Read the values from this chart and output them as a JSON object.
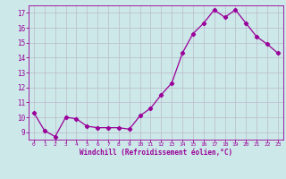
{
  "x": [
    0,
    1,
    2,
    3,
    4,
    5,
    6,
    7,
    8,
    9,
    10,
    11,
    12,
    13,
    14,
    15,
    16,
    17,
    18,
    19,
    20,
    21,
    22,
    23
  ],
  "y": [
    10.3,
    9.1,
    8.7,
    10.0,
    9.9,
    9.4,
    9.3,
    9.3,
    9.3,
    9.2,
    10.1,
    10.6,
    11.5,
    12.3,
    14.3,
    15.6,
    16.3,
    17.2,
    16.7,
    17.2,
    16.3,
    15.4,
    14.9,
    14.3
  ],
  "line_color": "#990099",
  "marker": "D",
  "marker_size": 2.2,
  "bg_color": "#cce8e8",
  "grid_color": "#bbbbcc",
  "xlabel": "Windchill (Refroidissement éolien,°C)",
  "tick_color": "#990099",
  "ylim": [
    8.5,
    17.5
  ],
  "xlim": [
    -0.5,
    23.5
  ],
  "yticks": [
    9,
    10,
    11,
    12,
    13,
    14,
    15,
    16,
    17
  ],
  "xticks": [
    0,
    1,
    2,
    3,
    4,
    5,
    6,
    7,
    8,
    9,
    10,
    11,
    12,
    13,
    14,
    15,
    16,
    17,
    18,
    19,
    20,
    21,
    22,
    23
  ],
  "figsize": [
    3.2,
    2.0
  ],
  "dpi": 100
}
